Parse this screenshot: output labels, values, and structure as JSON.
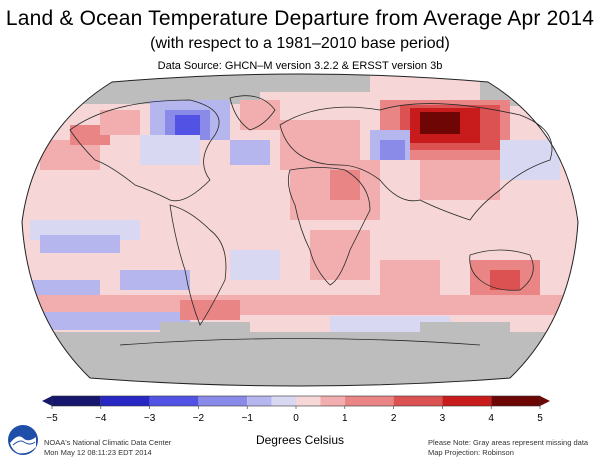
{
  "header": {
    "title": "Land & Ocean Temperature Departure from Average Apr 2014",
    "subtitle": "(with respect to a 1981–2010 base period)",
    "source": "Data Source: GHCN–M version 3.2.2 & ERSST version 3b"
  },
  "legend": {
    "ticks": [
      "−5",
      "−4",
      "−3",
      "−2",
      "−1",
      "0",
      "1",
      "2",
      "3",
      "4",
      "5"
    ],
    "caption": "Degrees Celsius",
    "colors": {
      "neg5": "#16166e",
      "neg4": "#2727c4",
      "neg3": "#5252e4",
      "neg2": "#8a8ae8",
      "neg1": "#b6b6ee",
      "neg0": "#d8d8f2",
      "pos0": "#f6d6d6",
      "pos1": "#f2aeae",
      "pos2": "#ea8585",
      "pos3": "#dc5252",
      "pos4": "#c81c1c",
      "pos5": "#6e0606"
    }
  },
  "footer": {
    "agency_line1": "NOAA's National Climatic Data Center",
    "agency_line2": "Mon May 12 08:11:23 EDT 2014",
    "note_line1": "Please Note: Gray areas represent missing data",
    "note_line2": "Map Projection: Robinson",
    "logo_icon": "noaa-logo-icon"
  },
  "map": {
    "missing_color": "#bdbdbd",
    "land_outline_color": "#2a2a2a"
  }
}
